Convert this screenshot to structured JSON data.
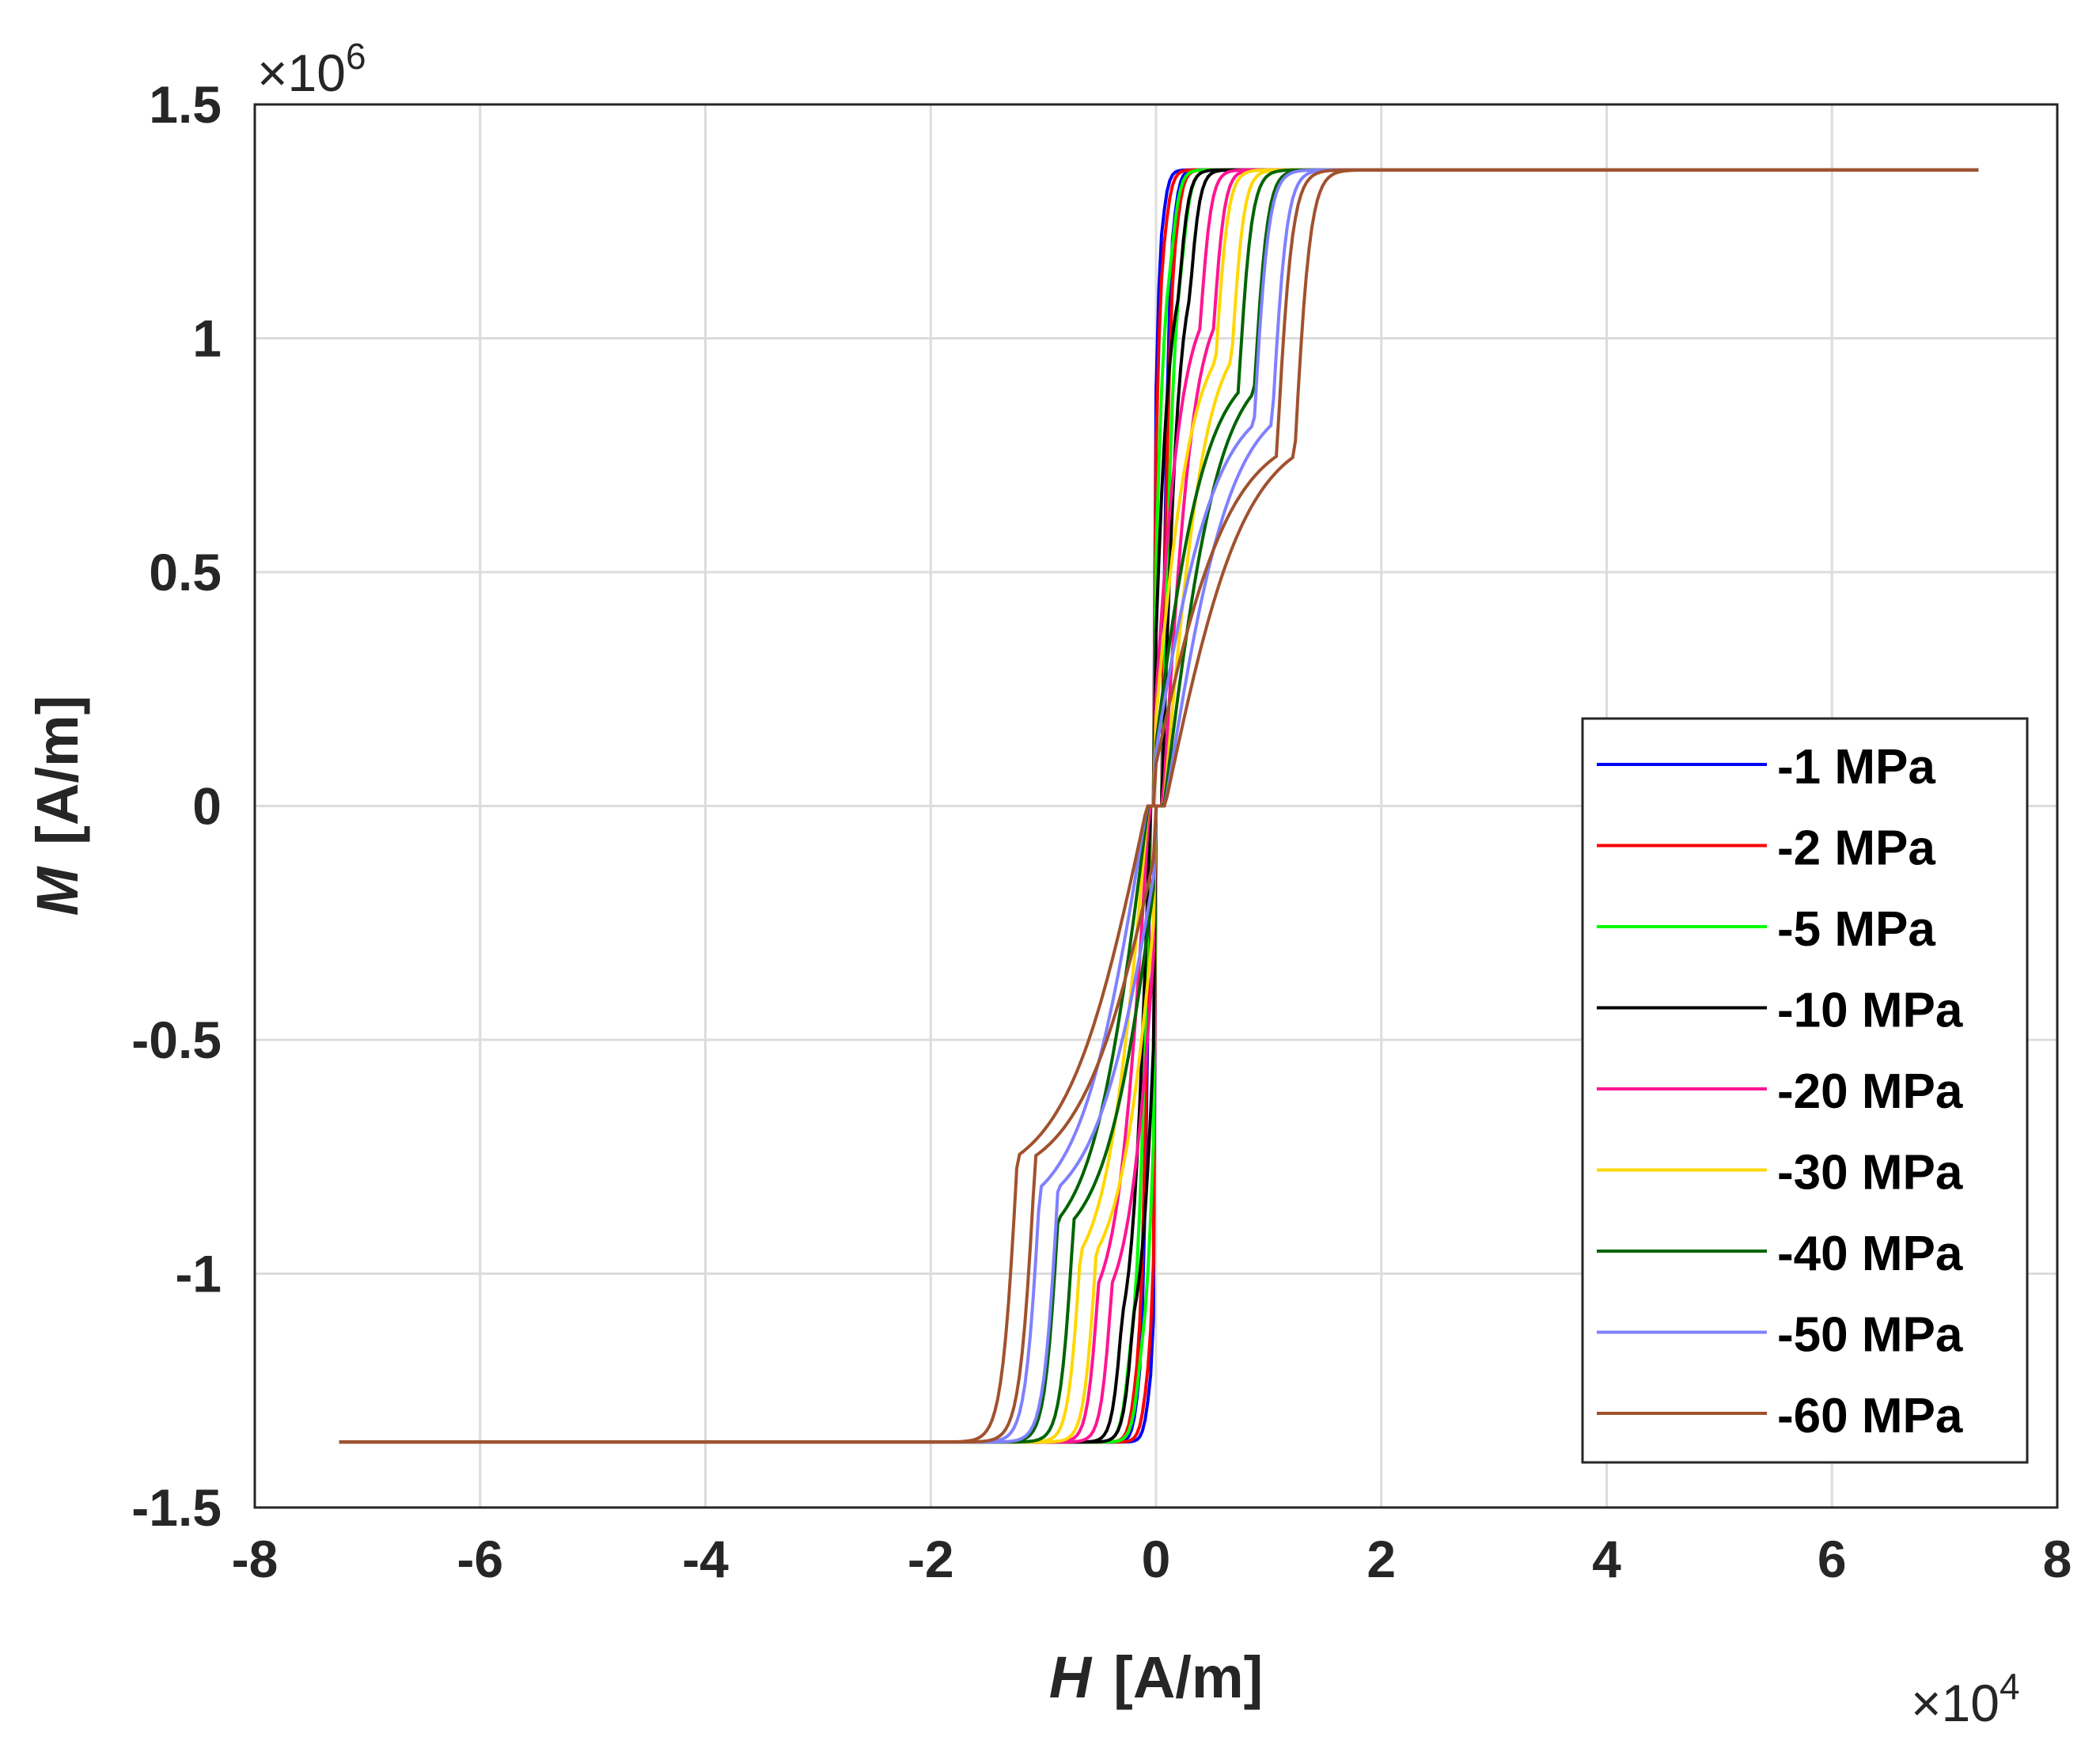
{
  "chart_data": {
    "type": "line",
    "title": "",
    "xlabel_var": "H",
    "xlabel_unit": "[A/m]",
    "ylabel_var": "M",
    "ylabel_unit": "[A/m]",
    "x_exponent": {
      "base": "×10",
      "power": "4"
    },
    "y_exponent": {
      "base": "×10",
      "power": "6"
    },
    "xlim": [
      -8,
      8
    ],
    "ylim": [
      -1.5,
      1.5
    ],
    "x_ticks": [
      "-8",
      "-6",
      "-4",
      "-2",
      "0",
      "2",
      "4",
      "6",
      "8"
    ],
    "y_ticks": [
      "-1.5",
      "-1",
      "-0.5",
      "0",
      "0.5",
      "1",
      "1.5"
    ],
    "x_tick_values": [
      -8,
      -6,
      -4,
      -2,
      0,
      2,
      4,
      6,
      8
    ],
    "y_tick_values": [
      -1.5,
      -1,
      -0.5,
      0,
      0.5,
      1,
      1.5
    ],
    "grid": true,
    "legend_position": "lower-right",
    "x_range": [
      -7.25,
      7.3
    ],
    "saturation": 1.36,
    "series": [
      {
        "name": "-1 MPa",
        "color": "#0000ff",
        "knee_x": 0.1,
        "knee_y": 0.9,
        "linear_slope": 0,
        "hysteresis": 0.05,
        "width": 0.06
      },
      {
        "name": "-2 MPa",
        "color": "#ff0000",
        "knee_x": 0.12,
        "knee_y": 0.88,
        "linear_slope": 0,
        "hysteresis": 0.05,
        "width": 0.07
      },
      {
        "name": "-5 MPa",
        "color": "#00ff00",
        "knee_x": 0.18,
        "knee_y": 0.85,
        "linear_slope": 0,
        "hysteresis": 0.05,
        "width": 0.08
      },
      {
        "name": "-10 MPa",
        "color": "#000000",
        "knee_x": 0.25,
        "knee_y": 0.8,
        "linear_slope": 0,
        "hysteresis": 0.05,
        "width": 0.09
      },
      {
        "name": "-20 MPa",
        "color": "#ff1493",
        "knee_x": 0.45,
        "knee_y": 0.75,
        "linear_slope": 0,
        "hysteresis": 0.06,
        "width": 0.1
      },
      {
        "name": "-30 MPa",
        "color": "#ffd700",
        "knee_x": 0.6,
        "knee_y": 0.7,
        "linear_slope": 0,
        "hysteresis": 0.07,
        "width": 0.11
      },
      {
        "name": "-40 MPa",
        "color": "#006400",
        "knee_x": 0.8,
        "knee_y": 0.65,
        "linear_slope": 0,
        "hysteresis": 0.07,
        "width": 0.12
      },
      {
        "name": "-50 MPa",
        "color": "#8080ff",
        "knee_x": 0.95,
        "knee_y": 0.6,
        "linear_slope": 0,
        "hysteresis": 0.08,
        "width": 0.13
      },
      {
        "name": "-60 MPa",
        "color": "#a0522d",
        "knee_x": 1.15,
        "knee_y": 0.55,
        "linear_slope": 0,
        "hysteresis": 0.08,
        "width": 0.14
      }
    ]
  }
}
